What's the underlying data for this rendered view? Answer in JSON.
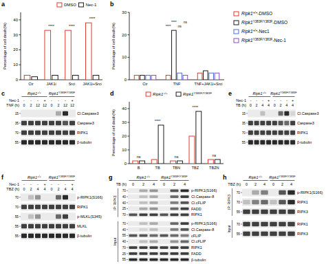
{
  "chart_data": [
    {
      "panel_label": "a",
      "type": "bar",
      "y_label": "Percentage of cell death(%)",
      "categories": [
        "Ctr",
        "JAK1i",
        "Srci",
        "JAK1i+Srci"
      ],
      "series": [
        {
          "name": "DMSO",
          "color": "#e0392e",
          "values": [
            3,
            33,
            33,
            38
          ]
        },
        {
          "name": "Nec-1",
          "color": "#1a1a1a",
          "values": [
            2,
            3,
            3,
            3
          ]
        }
      ],
      "significance": [
        null,
        "****",
        "****",
        "****"
      ],
      "ylim": [
        0,
        45
      ],
      "yticks": [
        0,
        10,
        20,
        30,
        40
      ],
      "legend": "top"
    },
    {
      "panel_label": "b",
      "type": "bar",
      "y_label": "Percentage of cell death(%)",
      "categories": [
        "Ctr",
        "TNF",
        "TNF+JAK1i+Srci"
      ],
      "series": [
        {
          "name": "Ripk1+/+-DMSO",
          "color": "#e0392e",
          "values": [
            2,
            2,
            3
          ]
        },
        {
          "name": "Ripk1Y383F/Y383F-DMSO",
          "color": "#1a1a1a",
          "values": [
            2,
            22,
            4
          ]
        },
        {
          "name": "Ripk1+/+-Nec1",
          "color": "#4a6fd1",
          "values": [
            2,
            3,
            3
          ]
        },
        {
          "name": "Ripk1Y383F/Y383F-Nec-1",
          "color": "#8a4fb5",
          "values": [
            2,
            2,
            3
          ]
        }
      ],
      "significance": [
        null,
        [
          "****",
          "****",
          "ns",
          "ns"
        ],
        null
      ],
      "ylim": [
        0,
        30
      ],
      "yticks": [
        0,
        10,
        20,
        30
      ],
      "legend": "right"
    },
    {
      "panel_label": "d",
      "type": "bar",
      "y_label": "Percentage of cell death(%)",
      "categories": [
        "B",
        "TB",
        "TBN",
        "TBZ",
        "TBZN"
      ],
      "series": [
        {
          "name": "Ripk1+/+",
          "color": "#e0392e",
          "values": [
            2,
            3,
            2,
            20,
            3
          ]
        },
        {
          "name": "Ripk1Y383F/Y383F",
          "color": "#1a1a1a",
          "values": [
            2,
            28,
            2,
            38,
            3
          ]
        }
      ],
      "significance": [
        "ns",
        "****",
        "ns",
        "****",
        "ns"
      ],
      "ylim": [
        0,
        45
      ],
      "yticks": [
        0,
        10,
        20,
        30,
        40
      ],
      "legend": "top"
    }
  ],
  "blots": [
    {
      "panel_label": "c",
      "genotypes": [
        "Ripk1+/+",
        "Ripk1Y383F/Y383F"
      ],
      "conditions": [
        {
          "label": "Nec-1",
          "values": [
            "-",
            "-",
            "-",
            "+",
            "-",
            "-",
            "-",
            "+"
          ]
        },
        {
          "label": "TNF (h)",
          "values": [
            "0",
            "2",
            "12",
            "12",
            "0",
            "2",
            "12",
            "12"
          ]
        }
      ],
      "sections": [
        {
          "rows": [
            {
              "label": "Cl.Caspase3",
              "mw": 15,
              "bands": [
                0,
                0,
                0,
                0,
                0,
                0.3,
                0.9,
                0
              ]
            },
            {
              "label": "Caspase3",
              "mw": 35,
              "bands": [
                0.8,
                0.8,
                0.8,
                0.8,
                0.8,
                0.8,
                0.7,
                0.8
              ]
            },
            {
              "label": "RIPK1",
              "mw": 70,
              "bands": [
                0.8,
                0.8,
                0.8,
                0.8,
                0.8,
                0.8,
                0.8,
                0.8
              ]
            },
            {
              "label": "β-tubulin",
              "mw": 55,
              "bands": [
                0.9,
                0.9,
                0.9,
                0.9,
                0.9,
                0.9,
                0.9,
                0.9
              ]
            }
          ]
        }
      ]
    },
    {
      "panel_label": "e",
      "genotypes": [
        "Ripk1+/+",
        "Ripk1Y383F/Y383F"
      ],
      "conditions": [
        {
          "label": "Nec-1",
          "values": [
            "-",
            "-",
            "-",
            "+",
            "-",
            "-",
            "-",
            "+"
          ]
        },
        {
          "label": "TB (h)",
          "values": [
            "0",
            "2",
            "4",
            "4",
            "0",
            "2",
            "4",
            "4"
          ]
        }
      ],
      "sections": [
        {
          "rows": [
            {
              "label": "Cl.Caspase3",
              "mw": 15,
              "bands": [
                0,
                0,
                0.2,
                0,
                0,
                0.6,
                0.9,
                0.1
              ]
            },
            {
              "label": "Caspase3",
              "mw": 35,
              "bands": [
                0.8,
                0.8,
                0.8,
                0.8,
                0.8,
                0.7,
                0.6,
                0.8
              ]
            },
            {
              "label": "RIPK1",
              "mw": 70,
              "bands": [
                0.8,
                0.8,
                0.8,
                0.8,
                0.8,
                0.8,
                0.8,
                0.8
              ]
            },
            {
              "label": "β-tubulin",
              "mw": 55,
              "bands": [
                0.9,
                0.9,
                0.9,
                0.9,
                0.9,
                0.9,
                0.9,
                0.9
              ]
            }
          ]
        }
      ]
    },
    {
      "panel_label": "f",
      "genotypes": [
        "Ripk1+/+",
        "Ripk1Y383F/Y383F"
      ],
      "conditions": [
        {
          "label": "Nec-1",
          "values": [
            "-",
            "-",
            "-",
            "+",
            "-",
            "-",
            "-",
            "+"
          ]
        },
        {
          "label": "TBZ (h)",
          "values": [
            "0",
            "2",
            "4",
            "4",
            "0",
            "2",
            "4",
            "4"
          ]
        }
      ],
      "sections": [
        {
          "rows": [
            {
              "label": "p-RIPK1(S166)",
              "mw": 70,
              "bands": [
                0,
                0.2,
                0.4,
                0,
                0,
                0.6,
                0.9,
                0
              ]
            },
            {
              "label": "RIPK1",
              "mw": 70,
              "bands": [
                0.8,
                0.8,
                0.8,
                0.8,
                0.8,
                0.8,
                0.8,
                0.8
              ]
            },
            {
              "label": "p-MLKL(S345)",
              "mw": 55,
              "bands": [
                0,
                0.2,
                0.4,
                0,
                0,
                0.6,
                0.8,
                0
              ]
            },
            {
              "label": "MLKL",
              "mw": 55,
              "bands": [
                0.8,
                0.8,
                0.8,
                0.8,
                0.8,
                0.8,
                0.8,
                0.8
              ]
            },
            {
              "label": "β-tubulin",
              "mw": 55,
              "bands": [
                0.9,
                0.9,
                0.9,
                0.9,
                0.9,
                0.9,
                0.9,
                0.9
              ]
            }
          ]
        }
      ]
    },
    {
      "panel_label": "g",
      "genotypes": [
        "Ripk1+/+",
        "Ripk1Y383F/Y383F"
      ],
      "conditions": [
        {
          "label": "TB (h)",
          "values": [
            "0",
            "2",
            "4",
            "0",
            "2",
            "4"
          ]
        }
      ],
      "sections": [
        {
          "label": "IP: RIPK1",
          "rows": [
            {
              "label": "p-RIPK1(S166)",
              "mw": 70,
              "bands": [
                0,
                0.3,
                0.4,
                0,
                0.7,
                0.9
              ]
            },
            {
              "label": "Cl.Caspase-8",
              "mw": 40,
              "bands": [
                0,
                0.2,
                0.3,
                0,
                0.6,
                0.8
              ]
            },
            {
              "label": "Cl.cFLIP",
              "mw": 40,
              "bands": [
                0,
                0.2,
                0.3,
                0,
                0.5,
                0.7
              ]
            },
            {
              "label": "FADD",
              "mw": 25,
              "bands": [
                0,
                0.3,
                0.4,
                0,
                0.6,
                0.8
              ]
            },
            {
              "label": "RIPK1",
              "mw": 70,
              "bands": [
                0.7,
                0.8,
                0.8,
                0.7,
                0.8,
                0.8
              ]
            }
          ]
        },
        {
          "label": "Input",
          "rows": [
            {
              "label": "p-RIPK1(S166)",
              "mw": 70,
              "bands": [
                0,
                0.2,
                0.3,
                0,
                0.6,
                0.8
              ]
            },
            {
              "label": "Cl.Caspase-8",
              "mw": 40,
              "bands": [
                0,
                0.1,
                0.2,
                0,
                0.5,
                0.7
              ]
            },
            {
              "label": "cFLIP",
              "mw": 55,
              "bands": [
                0.7,
                0.7,
                0.6,
                0.7,
                0.6,
                0.5
              ]
            },
            {
              "label": "Cl.cFLIP",
              "mw": 40,
              "bands": [
                0,
                0.2,
                0.3,
                0,
                0.4,
                0.6
              ]
            },
            {
              "label": "RIPK1",
              "mw": 70,
              "bands": [
                0.8,
                0.8,
                0.8,
                0.8,
                0.8,
                0.8
              ]
            },
            {
              "label": "FADD",
              "mw": 25,
              "bands": [
                0.8,
                0.8,
                0.8,
                0.8,
                0.8,
                0.8
              ]
            },
            {
              "label": "β-tubulin",
              "mw": 55,
              "bands": [
                0.9,
                0.9,
                0.9,
                0.9,
                0.9,
                0.9
              ]
            }
          ]
        }
      ]
    },
    {
      "panel_label": "h",
      "genotypes": [
        "Ripk1+/+",
        "Ripk1Y383F/Y383F"
      ],
      "conditions": [
        {
          "label": "TBZ (h)",
          "values": [
            "0",
            "2",
            "4",
            "0",
            "2",
            "4"
          ]
        }
      ],
      "sections": [
        {
          "label": "IP: RIPK3",
          "rows": [
            {
              "label": "p-RIPK1(S166)",
              "mw": 70,
              "bands": [
                0,
                0.3,
                0.5,
                0,
                0.7,
                0.9
              ]
            },
            {
              "label": "RIPK1",
              "mw": 70,
              "bands": [
                0.2,
                0.5,
                0.6,
                0.2,
                0.7,
                0.9
              ]
            },
            {
              "label": "RIPK3",
              "mw": 55,
              "bands": [
                0.8,
                0.8,
                0.8,
                0.8,
                0.8,
                0.8
              ]
            }
          ]
        },
        {
          "label": "Input",
          "rows": [
            {
              "label": "RIPK1",
              "mw": 70,
              "bands": [
                0.8,
                0.8,
                0.8,
                0.8,
                0.8,
                0.8
              ]
            },
            {
              "label": "RIPK3",
              "mw": 55,
              "bands": [
                0.8,
                0.8,
                0.8,
                0.8,
                0.8,
                0.8
              ]
            }
          ]
        }
      ]
    }
  ]
}
